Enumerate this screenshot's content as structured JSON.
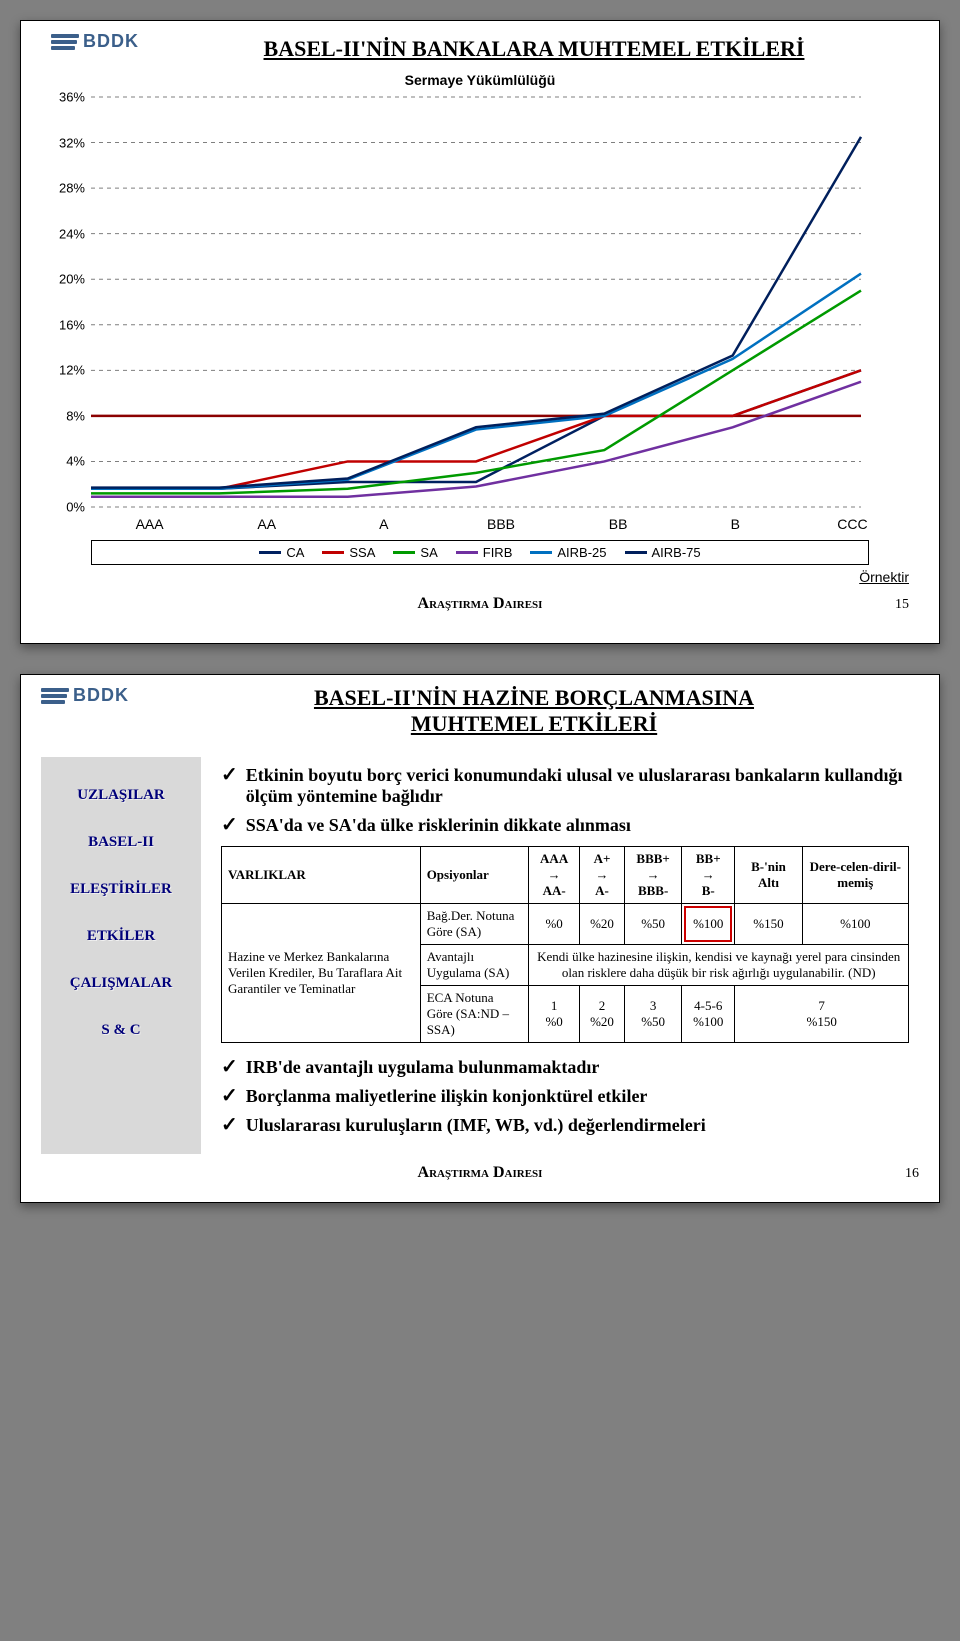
{
  "slide1": {
    "title": "BASEL-II'NİN BANKALARA MUHTEMEL ETKİLERİ",
    "chart_subtitle": "Sermaye Yükümlülüğü",
    "y_ticks": [
      "0%",
      "4%",
      "8%",
      "12%",
      "16%",
      "20%",
      "24%",
      "28%",
      "32%",
      "36%"
    ],
    "y_min": 0,
    "y_max": 36,
    "x_labels": [
      "AAA",
      "AA",
      "A",
      "BBB",
      "BB",
      "B",
      "CCC"
    ],
    "series": [
      {
        "name": "CA",
        "color": "#002060",
        "values": [
          1.6,
          1.6,
          2.2,
          2.2,
          8.0,
          8.0,
          12.0
        ]
      },
      {
        "name": "SSA",
        "color": "#c00000",
        "values": [
          1.6,
          1.6,
          4.0,
          4.0,
          8.0,
          8.0,
          12.0
        ]
      },
      {
        "name": "SA",
        "color": "#009a00",
        "values": [
          1.2,
          1.2,
          1.6,
          3.0,
          5.0,
          12.0,
          19.0
        ]
      },
      {
        "name": "FIRB",
        "color": "#7030a0",
        "values": [
          0.9,
          0.9,
          0.9,
          1.8,
          4.0,
          7.0,
          11.0
        ]
      },
      {
        "name": "AIRB-25",
        "color": "#0070c0",
        "values": [
          1.6,
          1.6,
          2.4,
          6.8,
          8.0,
          13.0,
          20.5
        ]
      },
      {
        "name": "AIRB-75",
        "color": "#001f5c",
        "values": [
          1.7,
          1.7,
          2.5,
          7.0,
          8.2,
          13.3,
          32.5
        ]
      }
    ],
    "baseline": {
      "color": "#8b0000",
      "value": 8.0
    },
    "grid_color": "#7f7f7f",
    "legend_labels": [
      "CA",
      "SSA",
      "SA",
      "FIRB",
      "AIRB-25",
      "AIRB-75"
    ],
    "ornektir": "Örnektir",
    "footer_dept": "Araştırma Dairesi",
    "page": "15",
    "logo_text": "BDDK"
  },
  "slide2": {
    "title1": "BASEL-II'NİN HAZİNE BORÇLANMASINA",
    "title2": "MUHTEMEL ETKİLERİ",
    "logo_text": "BDDK",
    "sidebar": [
      "UZLAŞILAR",
      "BASEL-II",
      "ELEŞTİRİLER",
      "ETKİLER",
      "ÇALIŞMALAR",
      "S & C"
    ],
    "bullets_top": [
      "Etkinin boyutu borç verici konumundaki ulusal ve uluslararası bankaların kullandığı ölçüm yöntemine bağlıdır",
      "SSA'da ve SA'da ülke risklerinin dikkate alınması"
    ],
    "table": {
      "headers": [
        "VARLIKLAR",
        "Opsiyonlar",
        "AAA → AA-",
        "A+ → A-",
        "BBB+ → BBB-",
        "BB+ → B-",
        "B-'nin Altı",
        "Dere-celen-diril-memiş"
      ],
      "row_label": "Hazine ve Merkez Bankalarına Verilen Krediler, Bu Taraflara Ait Garantiler ve Teminatlar",
      "opt1": "Bağ.Der. Notuna Göre (SA)",
      "opt1_vals": [
        "%0",
        "%20",
        "%50",
        "%100",
        "%150",
        "%100"
      ],
      "opt2": "Avantajlı Uygulama (SA)",
      "opt2_note": "Kendi ülke hazinesine ilişkin, kendisi ve kaynağı yerel para cinsinden olan risklere daha düşük bir risk ağırlığı uygulanabilir. (ND)",
      "opt3": "ECA Notuna Göre (SA:ND – SSA)",
      "opt3_top": [
        "1",
        "2",
        "3",
        "4-5-6",
        "7"
      ],
      "opt3_vals": [
        "%0",
        "%20",
        "%50",
        "%100",
        "%150"
      ]
    },
    "bullets_bottom": [
      "IRB'de avantajlı uygulama bulunmamaktadır",
      "Borçlanma maliyetlerine ilişkin konjonktürel etkiler",
      "Uluslararası kuruluşların (IMF, WB, vd.) değerlendirmeleri"
    ],
    "footer_dept": "Araştırma Dairesi",
    "page": "16"
  }
}
